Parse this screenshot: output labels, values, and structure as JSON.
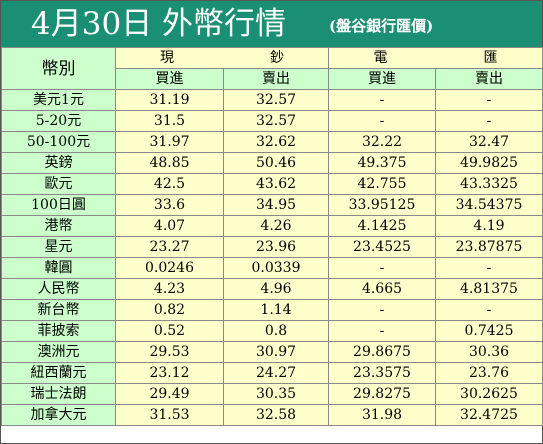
{
  "banner": {
    "title": "4月30日 外幣行情",
    "source": "(盤谷銀行匯價)"
  },
  "header": {
    "currency_col": "幣別",
    "cash": [
      "現",
      "鈔"
    ],
    "telegraphic": [
      "電",
      "匯"
    ],
    "buy": "買進",
    "sell": "賣出"
  },
  "rows": [
    {
      "currency": "美元1元",
      "cash_buy": "31.19",
      "cash_sell": "32.57",
      "tt_buy": "-",
      "tt_sell": "-"
    },
    {
      "currency": "5-20元",
      "cash_buy": "31.5",
      "cash_sell": "32.57",
      "tt_buy": "-",
      "tt_sell": "-"
    },
    {
      "currency": "50-100元",
      "cash_buy": "31.97",
      "cash_sell": "32.62",
      "tt_buy": "32.22",
      "tt_sell": "32.47"
    },
    {
      "currency": "英鎊",
      "cash_buy": "48.85",
      "cash_sell": "50.46",
      "tt_buy": "49.375",
      "tt_sell": "49.9825"
    },
    {
      "currency": "歐元",
      "cash_buy": "42.5",
      "cash_sell": "43.62",
      "tt_buy": "42.755",
      "tt_sell": "43.3325"
    },
    {
      "currency": "100日圓",
      "cash_buy": "33.6",
      "cash_sell": "34.95",
      "tt_buy": "33.95125",
      "tt_sell": "34.54375"
    },
    {
      "currency": "港幣",
      "cash_buy": "4.07",
      "cash_sell": "4.26",
      "tt_buy": "4.1425",
      "tt_sell": "4.19"
    },
    {
      "currency": "星元",
      "cash_buy": "23.27",
      "cash_sell": "23.96",
      "tt_buy": "23.4525",
      "tt_sell": "23.87875"
    },
    {
      "currency": "韓圓",
      "cash_buy": "0.0246",
      "cash_sell": "0.0339",
      "tt_buy": "-",
      "tt_sell": "-"
    },
    {
      "currency": "人民幣",
      "cash_buy": "4.23",
      "cash_sell": "4.96",
      "tt_buy": "4.665",
      "tt_sell": "4.81375"
    },
    {
      "currency": "新台幣",
      "cash_buy": "0.82",
      "cash_sell": "1.14",
      "tt_buy": "-",
      "tt_sell": "-"
    },
    {
      "currency": "菲披索",
      "cash_buy": "0.52",
      "cash_sell": "0.8",
      "tt_buy": "-",
      "tt_sell": "0.7425"
    },
    {
      "currency": "澳洲元",
      "cash_buy": "29.53",
      "cash_sell": "30.97",
      "tt_buy": "29.8675",
      "tt_sell": "30.36"
    },
    {
      "currency": "紐西蘭元",
      "cash_buy": "23.12",
      "cash_sell": "24.27",
      "tt_buy": "23.3575",
      "tt_sell": "23.76"
    },
    {
      "currency": "瑞士法朗",
      "cash_buy": "29.49",
      "cash_sell": "30.35",
      "tt_buy": "29.8275",
      "tt_sell": "30.2625"
    },
    {
      "currency": "加拿大元",
      "cash_buy": "31.53",
      "cash_sell": "32.58",
      "tt_buy": "31.98",
      "tt_sell": "32.4725"
    }
  ],
  "colors": {
    "banner": "#1a8f73",
    "label_cells": "#ccffcc",
    "value_cells": "#ffffcc"
  }
}
